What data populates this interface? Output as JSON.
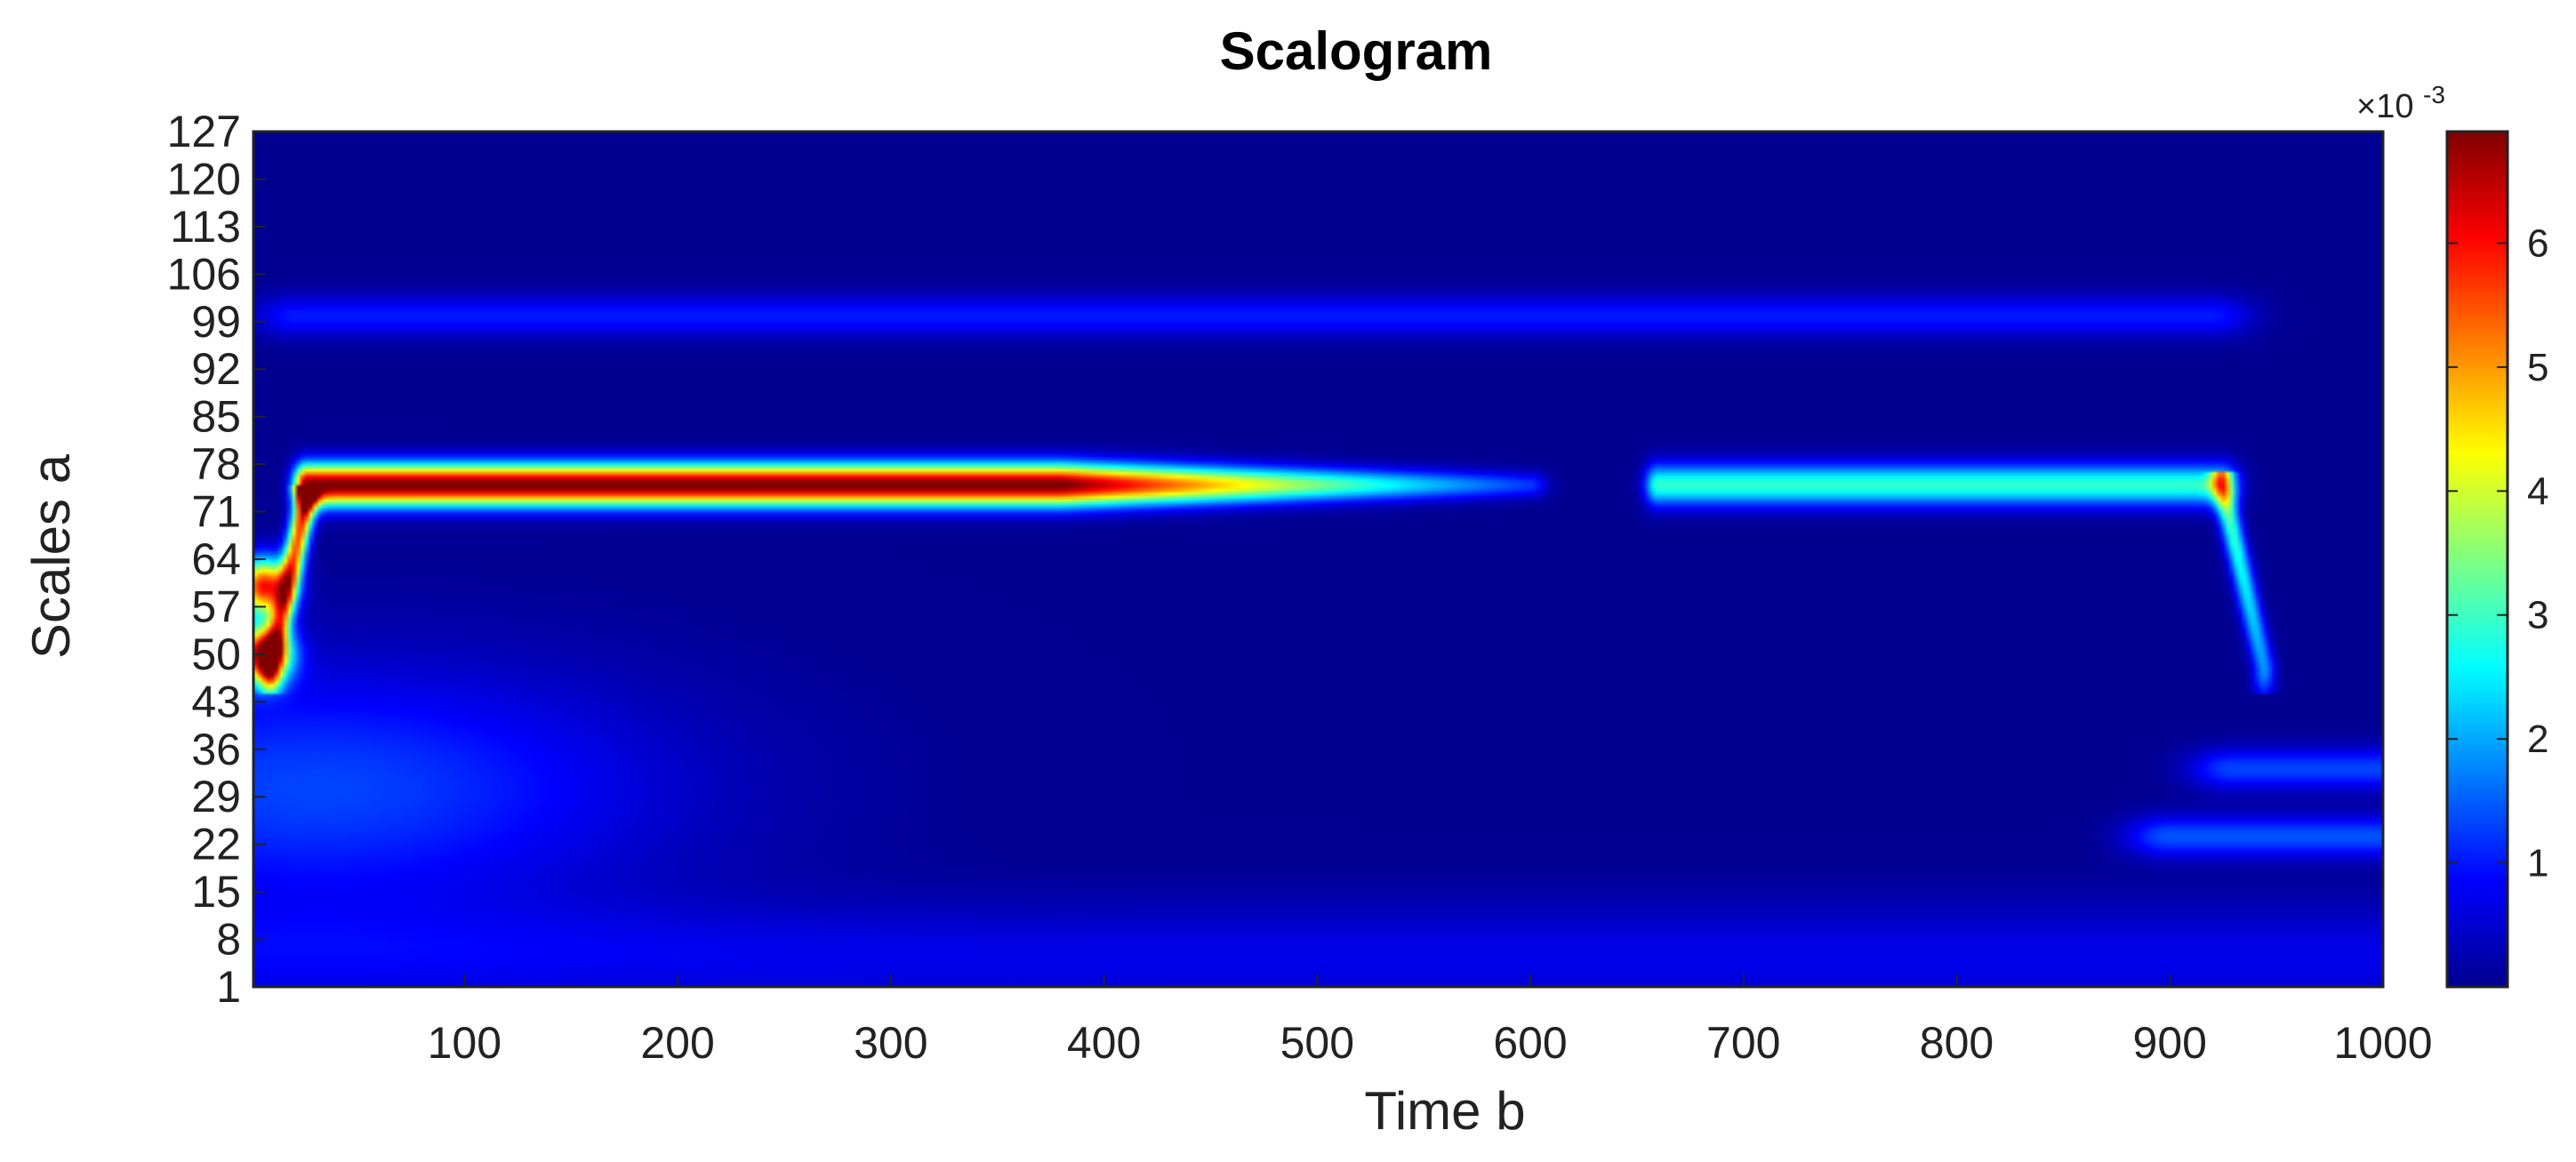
{
  "chart_data": {
    "type": "heatmap",
    "title": "Scalogram",
    "xlabel": "Time b",
    "ylabel": "Scales a",
    "xlim": [
      1,
      1000
    ],
    "ylim": [
      1,
      127
    ],
    "x_ticks": [
      "100",
      "200",
      "300",
      "400",
      "500",
      "600",
      "700",
      "800",
      "900",
      "1000"
    ],
    "y_ticks": [
      "1",
      "8",
      "15",
      "22",
      "29",
      "36",
      "43",
      "50",
      "57",
      "64",
      "71",
      "78",
      "85",
      "92",
      "99",
      "106",
      "113",
      "120",
      "127"
    ],
    "colorbar": {
      "colormap": "jet",
      "range": [
        0,
        0.0069
      ],
      "exponent_label": "×10",
      "exponent_power": "-3",
      "ticks": [
        "1",
        "2",
        "3",
        "4",
        "5",
        "6"
      ]
    },
    "features": [
      {
        "kind": "ridge",
        "scale": 75,
        "from_b": 25,
        "to_b": 600,
        "peak": 0.0069,
        "fade_from_b": 380
      },
      {
        "kind": "ridge",
        "scale": 75,
        "from_b": 660,
        "to_b": 925,
        "peak": 0.0028
      },
      {
        "kind": "blob",
        "b": 5,
        "scale": 50,
        "peak": 0.0066
      },
      {
        "kind": "blob",
        "b": 5,
        "scale": 60,
        "peak": 0.0058
      },
      {
        "kind": "branch",
        "from_b": 25,
        "to_b": 8,
        "from_scale": 73,
        "to_scale": 48,
        "peak": 0.006
      },
      {
        "kind": "branch",
        "from_b": 925,
        "to_b": 945,
        "from_scale": 75,
        "to_scale": 48,
        "peak": 0.0032
      },
      {
        "kind": "band",
        "scale": 100,
        "from_b": 20,
        "to_b": 920,
        "peak": 0.0009
      },
      {
        "kind": "band",
        "scale": 23,
        "from_b": 900,
        "to_b": 1000,
        "peak": 0.0013
      },
      {
        "kind": "band",
        "scale": 33,
        "from_b": 930,
        "to_b": 1000,
        "peak": 0.0012
      },
      {
        "kind": "low_region",
        "b": 30,
        "scale": 30,
        "peak": 0.0012
      }
    ]
  }
}
